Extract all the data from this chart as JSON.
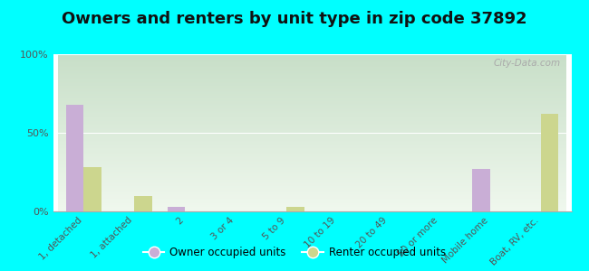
{
  "title": "Owners and renters by unit type in zip code 37892",
  "categories": [
    "1, detached",
    "1, attached",
    "2",
    "3 or 4",
    "5 to 9",
    "10 to 19",
    "20 to 49",
    "50 or more",
    "Mobile home",
    "Boat, RV, etc."
  ],
  "owner_values": [
    68,
    0,
    3,
    0,
    0,
    0,
    0,
    0,
    27,
    0
  ],
  "renter_values": [
    28,
    10,
    0,
    0,
    3,
    0,
    0,
    0,
    0,
    62
  ],
  "owner_color": "#c9aed6",
  "renter_color": "#ccd68e",
  "background_color": "#00ffff",
  "grad_top": "#c8dfc8",
  "grad_bottom": "#f0f8ee",
  "ylim": [
    0,
    100
  ],
  "yticks": [
    0,
    50,
    100
  ],
  "ytick_labels": [
    "0%",
    "50%",
    "100%"
  ],
  "title_fontsize": 13,
  "watermark": "City-Data.com"
}
